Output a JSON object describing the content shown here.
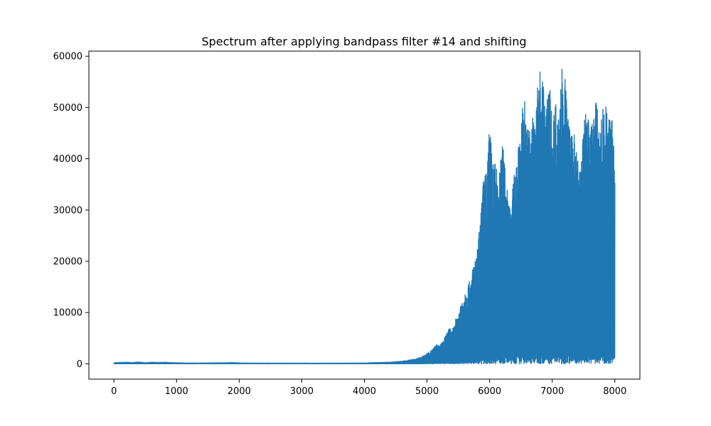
{
  "chart_data": {
    "type": "line",
    "title": "Spectrum after applying bandpass filter #14 and shifting",
    "xlabel": "",
    "ylabel": "",
    "xlim": [
      -400,
      8400
    ],
    "ylim": [
      -3000,
      61000
    ],
    "x_ticks": [
      0,
      1000,
      2000,
      3000,
      4000,
      5000,
      6000,
      7000,
      8000
    ],
    "y_ticks": [
      0,
      10000,
      20000,
      30000,
      40000,
      50000,
      60000
    ],
    "x_tick_labels": [
      "0",
      "1000",
      "2000",
      "3000",
      "4000",
      "5000",
      "6000",
      "7000",
      "8000"
    ],
    "y_tick_labels": [
      "0",
      "10000",
      "20000",
      "30000",
      "40000",
      "50000",
      "60000"
    ],
    "grid": false,
    "line_color": "#1f77b4",
    "series": [
      {
        "x": [
          0,
          100,
          200,
          300,
          400,
          500,
          600,
          700,
          800,
          900,
          1000,
          1200,
          1400,
          1600,
          1800,
          1900,
          2000,
          2500,
          3000,
          3500,
          4000,
          4200,
          4400,
          4600,
          4700,
          4800,
          4900,
          5000,
          5050,
          5100,
          5150,
          5200,
          5250,
          5300,
          5350,
          5400,
          5450,
          5500,
          5550,
          5600,
          5650,
          5700,
          5750,
          5800,
          5850,
          5900,
          5950,
          6000,
          6050,
          6100,
          6150,
          6200,
          6250,
          6300,
          6350,
          6400,
          6450,
          6500,
          6550,
          6600,
          6650,
          6700,
          6750,
          6800,
          6850,
          6900,
          6950,
          7000,
          7050,
          7100,
          7150,
          7200,
          7250,
          7300,
          7350,
          7400,
          7450,
          7500,
          7550,
          7600,
          7650,
          7700,
          7750,
          7800,
          7850,
          7900,
          7950,
          8000
        ],
        "y_high": [
          200,
          250,
          300,
          250,
          350,
          200,
          300,
          250,
          300,
          250,
          200,
          150,
          150,
          180,
          200,
          250,
          150,
          120,
          120,
          120,
          150,
          250,
          300,
          500,
          700,
          900,
          1300,
          2000,
          2500,
          3000,
          3800,
          3500,
          4500,
          5500,
          7000,
          6500,
          8500,
          9800,
          12500,
          14000,
          15500,
          16500,
          20000,
          22000,
          28000,
          36000,
          38000,
          46500,
          40000,
          39000,
          36000,
          43500,
          39000,
          33000,
          32000,
          38000,
          41000,
          47500,
          53500,
          46000,
          47000,
          49000,
          52000,
          58500,
          56000,
          49000,
          57000,
          47000,
          52000,
          48000,
          58500,
          56500,
          49000,
          44000,
          48000,
          40500,
          38000,
          46000,
          51500,
          45000,
          49000,
          52000,
          46000,
          49500,
          51000,
          48000,
          49000,
          42000
        ],
        "y_low": [
          0,
          0,
          0,
          0,
          0,
          0,
          0,
          0,
          0,
          0,
          0,
          0,
          0,
          0,
          0,
          0,
          0,
          0,
          0,
          0,
          0,
          0,
          0,
          0,
          0,
          0,
          0,
          0,
          0,
          0,
          0,
          0,
          0,
          0,
          0,
          0,
          0,
          0,
          0,
          0,
          0,
          0,
          0,
          0,
          0,
          0,
          0,
          0,
          0,
          0,
          0,
          0,
          0,
          0,
          0,
          0,
          0,
          0,
          0,
          0,
          0,
          0,
          0,
          0,
          0,
          0,
          0,
          0,
          0,
          0,
          0,
          0,
          0,
          0,
          0,
          0,
          0,
          0,
          0,
          0,
          0,
          0,
          0,
          0,
          0,
          0,
          0,
          1000
        ]
      }
    ]
  }
}
